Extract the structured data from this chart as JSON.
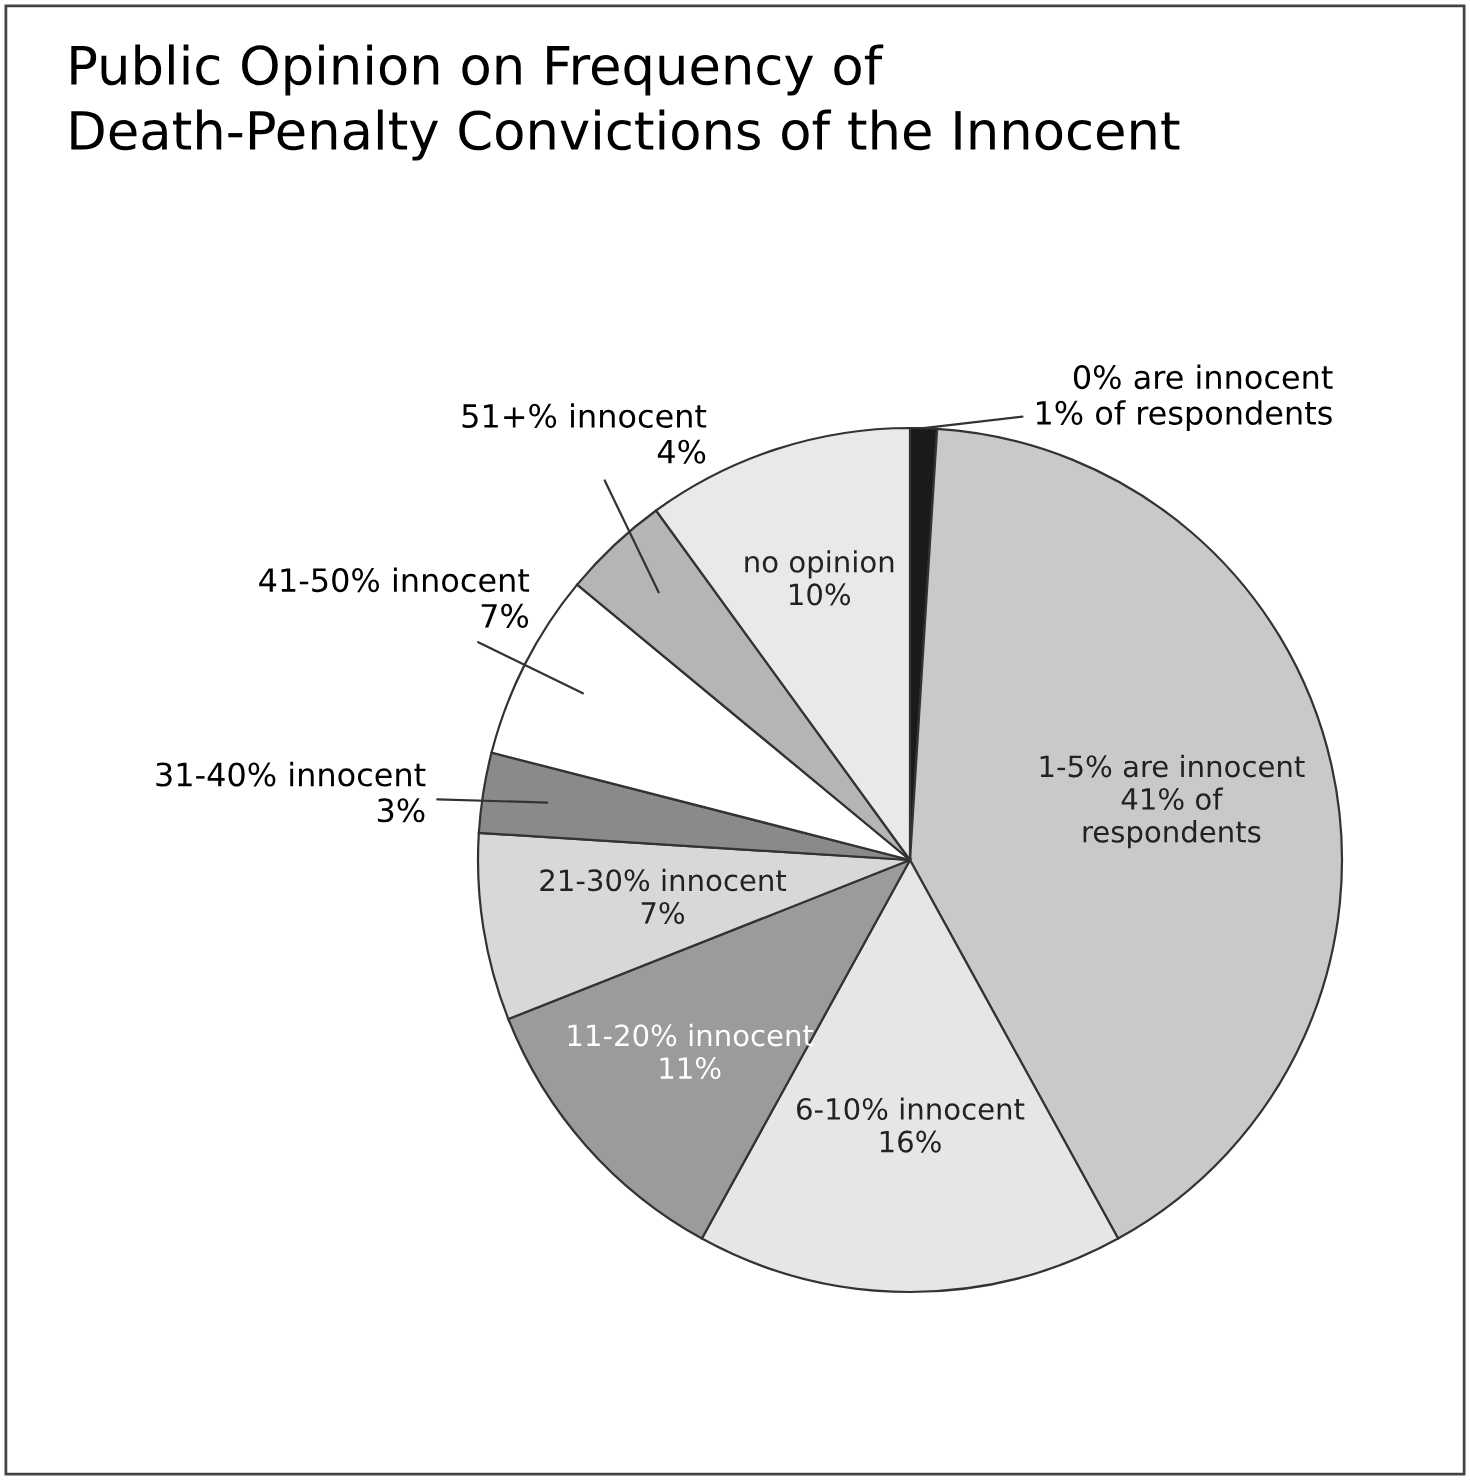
{
  "chart_data": {
    "type": "pie",
    "title": "Public Opinion on Frequency of\nDeath-Penalty Convictions of the Innocent",
    "categories": [
      "0% are innocent",
      "1-5% are innocent",
      "6-10% innocent",
      "11-20% innocent",
      "21-30% innocent",
      "31-40% innocent",
      "41-50% innocent",
      "51+% innocent",
      "no opinion"
    ],
    "values": [
      1,
      41,
      16,
      11,
      7,
      3,
      7,
      4,
      10
    ],
    "value_labels": [
      "1% of respondents",
      "41% of\nrespondents",
      "16%",
      "11%",
      "7%",
      "3%",
      "7%",
      "4%",
      "10%"
    ],
    "colors": [
      "#1a1a1a",
      "#c9c9c9",
      "#e6e6e6",
      "#9b9b9b",
      "#d8d8d8",
      "#8a8a8a",
      "#ffffff",
      "#b5b5b5",
      "#e9e9e9"
    ]
  }
}
